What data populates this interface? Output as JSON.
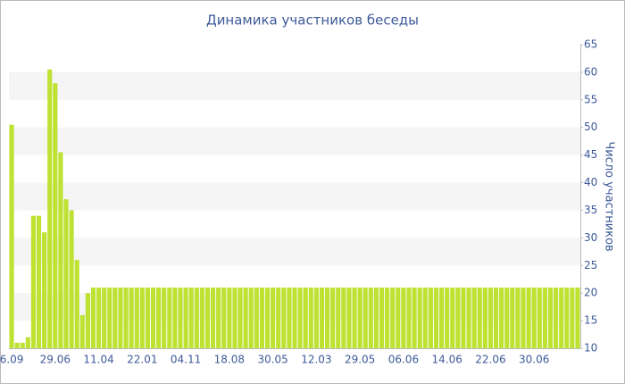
{
  "chart_data": {
    "type": "bar",
    "title": "Динамика участников беседы",
    "y_label": "Число участников",
    "categories": [
      "6.09",
      null,
      null,
      null,
      null,
      null,
      null,
      null,
      "29.06",
      null,
      null,
      null,
      null,
      null,
      null,
      null,
      "11.04",
      null,
      null,
      null,
      null,
      null,
      null,
      null,
      "22.01",
      null,
      null,
      null,
      null,
      null,
      null,
      null,
      "04.11",
      null,
      null,
      null,
      null,
      null,
      null,
      null,
      "18.08",
      null,
      null,
      null,
      null,
      null,
      null,
      null,
      "30.05",
      null,
      null,
      null,
      null,
      null,
      null,
      null,
      "12.03",
      null,
      null,
      null,
      null,
      null,
      null,
      null,
      "29.05",
      null,
      null,
      null,
      null,
      null,
      null,
      null,
      "06.06",
      null,
      null,
      null,
      null,
      null,
      null,
      null,
      "14.06",
      null,
      null,
      null,
      null,
      null,
      null,
      null,
      "22.06",
      null,
      null,
      null,
      null,
      null,
      null,
      null,
      "30.06",
      null,
      null,
      null,
      null,
      null,
      null,
      null,
      null
    ],
    "values": [
      50.5,
      11,
      11,
      12,
      34,
      34,
      31,
      60.5,
      58,
      45.5,
      37,
      35,
      26,
      16,
      20,
      21,
      21,
      21,
      21,
      21,
      21,
      21,
      21,
      21,
      21,
      21,
      21,
      21,
      21,
      21,
      21,
      21,
      21,
      21,
      21,
      21,
      21,
      21,
      21,
      21,
      21,
      21,
      21,
      21,
      21,
      21,
      21,
      21,
      21,
      21,
      21,
      21,
      21,
      21,
      21,
      21,
      21,
      21,
      21,
      21,
      21,
      21,
      21,
      21,
      21,
      21,
      21,
      21,
      21,
      21,
      21,
      21,
      21,
      21,
      21,
      21,
      21,
      21,
      21,
      21,
      21,
      21,
      21,
      21,
      21,
      21,
      21,
      21,
      21,
      21,
      21,
      21,
      21,
      21,
      21,
      21,
      21,
      21,
      21,
      21,
      21,
      21,
      21,
      21,
      21
    ],
    "color": "#bde232",
    "ylim": [
      10,
      65
    ],
    "yticks": [
      10,
      15,
      20,
      25,
      30,
      35,
      40,
      45,
      50,
      55,
      60,
      65
    ],
    "grid_bands": true,
    "y_axis_side": "right"
  }
}
